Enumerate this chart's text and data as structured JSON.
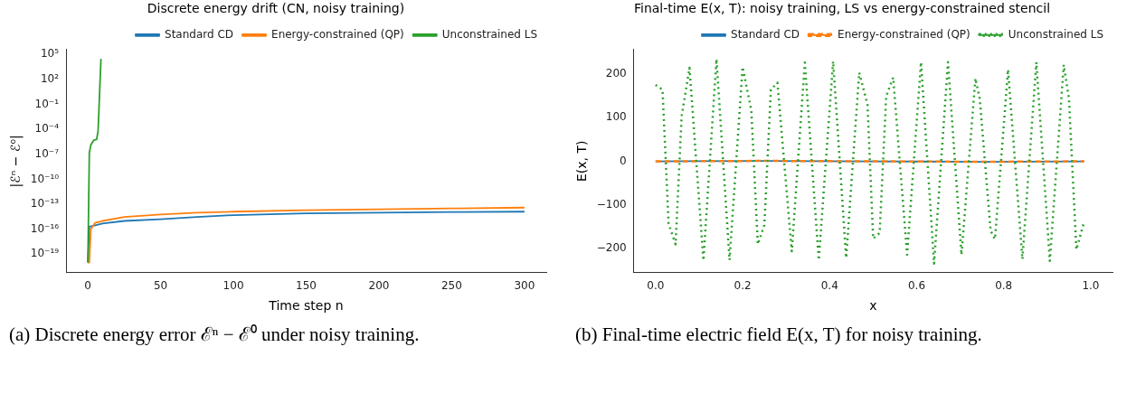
{
  "chart_data": [
    {
      "type": "line",
      "title": "Discrete energy drift (CN, noisy training)",
      "xlabel": "Time step n",
      "ylabel": "|ℰⁿ − ℰ⁰|",
      "log": "y",
      "legend": "top right",
      "xlim": [
        -15,
        315
      ],
      "xticks": [
        0,
        50,
        100,
        150,
        200,
        250,
        300
      ],
      "ylim": [
        6e-22,
        400000.0
      ],
      "yticks": [
        {
          "value": 100000.0,
          "label": "10⁵"
        },
        {
          "value": 100.0,
          "label": "10²"
        },
        {
          "value": 0.1,
          "label": "10⁻¹"
        },
        {
          "value": 0.0001,
          "label": "10⁻⁴"
        },
        {
          "value": 1e-07,
          "label": "10⁻⁷"
        },
        {
          "value": 1e-10,
          "label": "10⁻¹⁰"
        },
        {
          "value": 1e-13,
          "label": "10⁻¹³"
        },
        {
          "value": 1e-16,
          "label": "10⁻¹⁶"
        },
        {
          "value": 1e-19,
          "label": "10⁻¹⁹"
        }
      ],
      "series": [
        {
          "name": "Standard CD",
          "color": "#1f77b4",
          "x": [
            0,
            1,
            5,
            10,
            25,
            50,
            75,
            100,
            150,
            200,
            250,
            300
          ],
          "values": [
            1e-20,
            2e-16,
            3e-16,
            5e-16,
            1e-15,
            1.6e-15,
            3e-15,
            5e-15,
            8e-15,
            1e-14,
            1.2e-14,
            1.3e-14
          ]
        },
        {
          "name": "Energy-constrained (QP)",
          "color": "#ff7f0e",
          "x": [
            0,
            1,
            2,
            5,
            10,
            25,
            50,
            75,
            100,
            150,
            200,
            250,
            300
          ],
          "values": [
            1e-20,
            1e-20,
            1e-16,
            6e-16,
            1e-15,
            3e-15,
            6e-15,
            1e-14,
            1.3e-14,
            2e-14,
            2.5e-14,
            3.2e-14,
            4e-14
          ]
        },
        {
          "name": "Unconstrained LS",
          "color": "#2ca02c",
          "x": [
            0,
            1,
            2,
            4,
            6,
            7,
            9
          ],
          "values": [
            1e-20,
            1.6e-07,
            1.3e-06,
            5e-06,
            6e-06,
            6e-05,
            30000.0
          ]
        }
      ],
      "annotations": [
        "(a) Discrete energy error ℰⁿ − ℰ⁰ under noisy training."
      ]
    },
    {
      "type": "line",
      "title": "Final-time E(x, T): noisy training, LS vs energy-constrained stencil",
      "xlabel": "x",
      "ylabel": "E(x, T)",
      "legend": "top right",
      "xlim": [
        -0.05,
        1.05
      ],
      "xticks": [
        {
          "value": 0,
          "label": "0.0"
        },
        {
          "value": 0.2,
          "label": "0.2"
        },
        {
          "value": 0.4,
          "label": "0.4"
        },
        {
          "value": 0.6,
          "label": "0.6"
        },
        {
          "value": 0.8,
          "label": "0.8"
        },
        {
          "value": 1,
          "label": "1.0"
        }
      ],
      "ylim": [
        -255,
        256
      ],
      "yticks": [
        {
          "value": -200,
          "label": "−200"
        },
        {
          "value": -100,
          "label": "−100"
        },
        0,
        100,
        200
      ],
      "series": [
        {
          "name": "Standard CD",
          "color": "#1f77b4",
          "line_style": "solid",
          "x": [
            0,
            0.25,
            0.5,
            0.75,
            0.985
          ],
          "values": [
            0,
            1,
            0,
            -1,
            0
          ]
        },
        {
          "name": "Energy-constrained (QP)",
          "color": "#ff7f0e",
          "line_style": "dashed",
          "x": [
            0,
            0.25,
            0.5,
            0.75,
            0.985
          ],
          "values": [
            0,
            1,
            0,
            -1,
            0
          ]
        },
        {
          "name": "Unconstrained LS",
          "color": "#2ca02c",
          "line_style": "dotted",
          "x": [
            0,
            0.016,
            0.03,
            0.046,
            0.06,
            0.078,
            0.11,
            0.14,
            0.17,
            0.2,
            0.22,
            0.235,
            0.25,
            0.265,
            0.28,
            0.313,
            0.343,
            0.375,
            0.408,
            0.438,
            0.468,
            0.487,
            0.5,
            0.515,
            0.53,
            0.546,
            0.578,
            0.61,
            0.64,
            0.672,
            0.703,
            0.735,
            0.745,
            0.77,
            0.78,
            0.81,
            0.843,
            0.875,
            0.906,
            0.938,
            0.95,
            0.967,
            0.985
          ],
          "values": [
            175,
            164,
            -143,
            -190,
            104,
            214,
            -227,
            234,
            -226,
            216,
            117,
            -190,
            -146,
            164,
            180,
            -206,
            226,
            -226,
            229,
            -221,
            203,
            130,
            -177,
            -164,
            149,
            192,
            -214,
            227,
            -234,
            227,
            -214,
            190,
            143,
            -159,
            -178,
            210,
            -224,
            227,
            -228,
            221,
            143,
            -202,
            -138
          ]
        }
      ],
      "annotations": [
        "(b) Final-time electric field E(x, T) for noisy training."
      ]
    }
  ]
}
